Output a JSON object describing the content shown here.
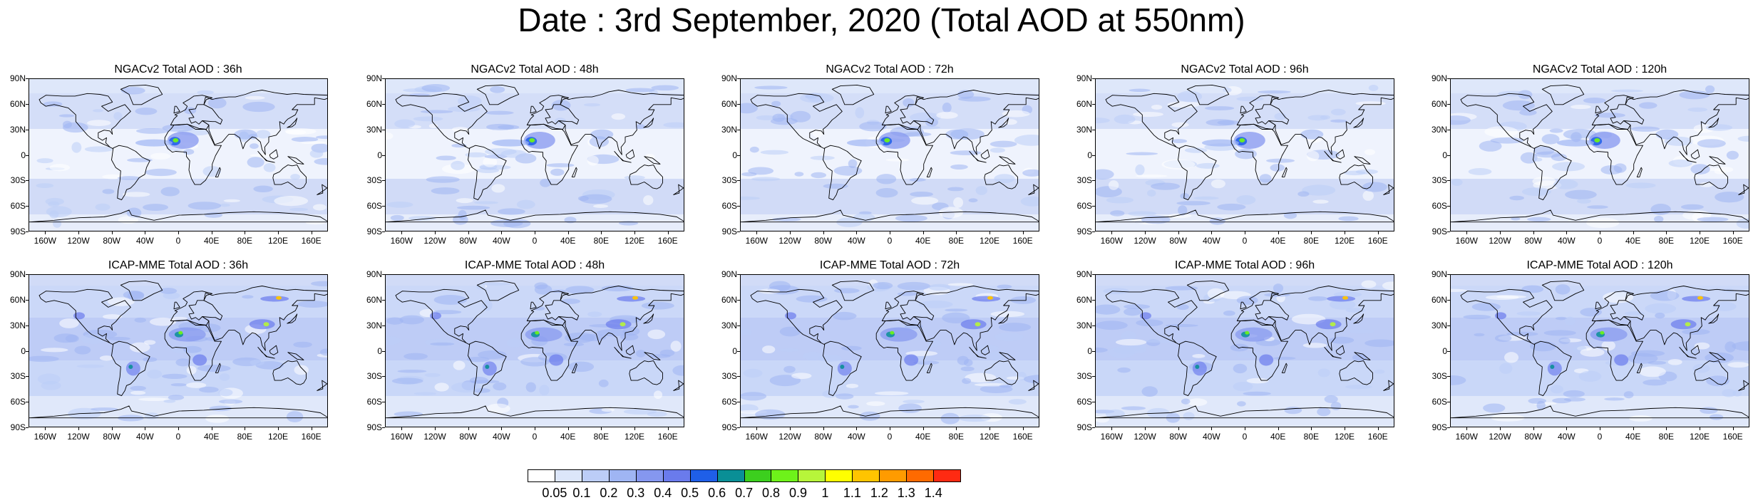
{
  "title": "Date : 3rd September, 2020 (Total AOD at 550nm)",
  "lat_labels": [
    "90N",
    "60N",
    "30N",
    "0",
    "30S",
    "60S",
    "90S"
  ],
  "lon_labels": [
    "160W",
    "120W",
    "80W",
    "40W",
    "0",
    "40E",
    "80E",
    "120E",
    "160E"
  ],
  "panels": [
    {
      "title": "NGACv2 Total AOD : 36h",
      "model": "NGACv2",
      "lead": "36h"
    },
    {
      "title": "NGACv2 Total AOD : 48h",
      "model": "NGACv2",
      "lead": "48h"
    },
    {
      "title": "NGACv2 Total AOD : 72h",
      "model": "NGACv2",
      "lead": "72h"
    },
    {
      "title": "NGACv2 Total AOD : 96h",
      "model": "NGACv2",
      "lead": "96h"
    },
    {
      "title": "NGACv2 Total AOD : 120h",
      "model": "NGACv2",
      "lead": "120h"
    },
    {
      "title": "ICAP-MME Total AOD : 36h",
      "model": "ICAP-MME",
      "lead": "36h"
    },
    {
      "title": "ICAP-MME Total AOD : 48h",
      "model": "ICAP-MME",
      "lead": "48h"
    },
    {
      "title": "ICAP-MME Total AOD : 72h",
      "model": "ICAP-MME",
      "lead": "72h"
    },
    {
      "title": "ICAP-MME Total AOD : 96h",
      "model": "ICAP-MME",
      "lead": "96h"
    },
    {
      "title": "ICAP-MME Total AOD : 120h",
      "model": "ICAP-MME",
      "lead": "120h"
    }
  ],
  "colorbar": {
    "labels": [
      "0.05",
      "0.1",
      "0.2",
      "0.3",
      "0.4",
      "0.5",
      "0.6",
      "0.7",
      "0.8",
      "0.9",
      "1",
      "1.1",
      "1.2",
      "1.3",
      "1.4"
    ],
    "colors": [
      "#ffffff",
      "#dce6fa",
      "#bccdf7",
      "#9fb5f3",
      "#8597ef",
      "#6a7bec",
      "#1f5fe8",
      "#0a8f96",
      "#3ccf1e",
      "#6ef21a",
      "#b7f53a",
      "#ffff00",
      "#ffc400",
      "#ff9b00",
      "#ff6a00",
      "#ff2a12"
    ]
  }
}
